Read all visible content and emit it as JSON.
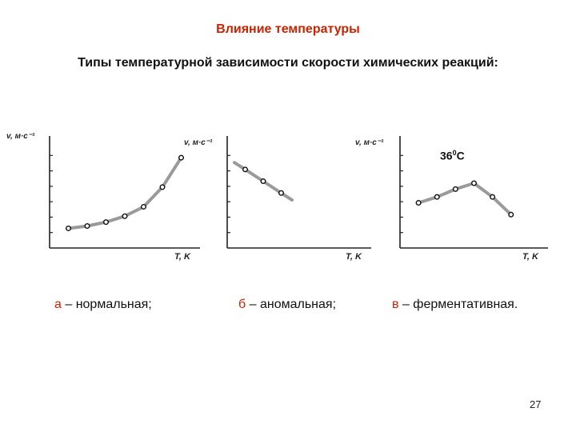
{
  "slide": {
    "title": "Влияние температуры",
    "subtitle": "Типы температурной зависимости скорости химических реакций:",
    "page_number": "27",
    "annotation": {
      "base": "36",
      "sup": "0",
      "tail": "C"
    },
    "captions": [
      {
        "letter": "а",
        "text": " – нормальная;"
      },
      {
        "letter": "б",
        "text": " – аномальная;"
      },
      {
        "letter": "в",
        "text": " – ферментативная."
      }
    ]
  },
  "chart_data": [
    {
      "type": "line",
      "ylabel": "v, м·с⁻¹",
      "xlabel": "T, K",
      "series": [
        {
          "x": [
            1,
            2,
            3,
            4,
            5,
            6,
            7
          ],
          "values": [
            1.0,
            1.12,
            1.32,
            1.62,
            2.1,
            3.1,
            4.6
          ]
        }
      ],
      "xlim": [
        0,
        8
      ],
      "ylim": [
        0,
        5.5
      ]
    },
    {
      "type": "line",
      "ylabel": "v, м·с⁻¹",
      "xlabel": "T, K",
      "series": [
        {
          "x": [
            1,
            2,
            3
          ],
          "values": [
            4.0,
            3.4,
            2.8
          ]
        }
      ],
      "xlim": [
        0,
        8
      ],
      "ylim": [
        0,
        5.5
      ]
    },
    {
      "type": "line",
      "ylabel": "v, м·с⁻¹",
      "xlabel": "T, K",
      "series": [
        {
          "x": [
            1,
            2,
            3,
            4,
            5,
            6
          ],
          "values": [
            2.3,
            2.6,
            3.0,
            3.3,
            2.6,
            1.7
          ]
        }
      ],
      "xlim": [
        0,
        8
      ],
      "ylim": [
        0,
        5.5
      ]
    }
  ]
}
